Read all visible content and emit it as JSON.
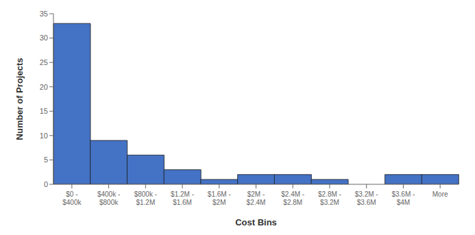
{
  "chart_data": {
    "type": "bar",
    "categories": [
      "$0 -\n$400k",
      "$400k -\n$800k",
      "$800k -\n$1.2M",
      "$1.2M -\n$1.6M",
      "$1.6M -\n$2M",
      "$2M -\n$2.4M",
      "$2.4M -\n$2.8M",
      "$2.8M -\n$3.2M",
      "$3.2M -\n$3.6M",
      "$3.6M -\n$4M",
      "More"
    ],
    "values": [
      33,
      9,
      6,
      3,
      1,
      2,
      2,
      1,
      0,
      2,
      2
    ],
    "color": "#4472C4",
    "xlabel": "Cost Bins",
    "ylabel": "Number of Projects",
    "ylim": [
      0,
      35
    ],
    "yticks": [
      0,
      5,
      10,
      15,
      20,
      25,
      30,
      35
    ],
    "grid": false
  }
}
